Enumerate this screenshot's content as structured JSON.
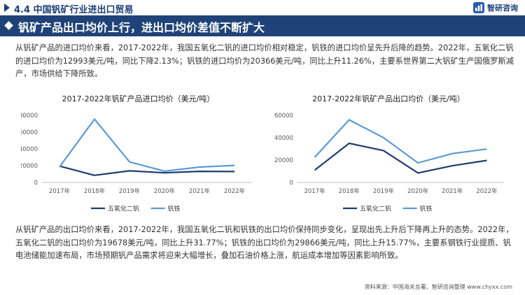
{
  "header": {
    "section_title": "4.4 中国钒矿行业进出口贸易",
    "logo_text": "智研咨询",
    "banner_title": "钒矿产品出口均价上行，进出口均价差值不断扩大"
  },
  "paragraphs": {
    "p1": "从钒矿产品的进口均价来看，2017-2022年，我国五氧化二钒的进口均价相对稳定，钒铁的进口均价呈先升后降的趋势。2022年，五氧化二钒的进口均价为12993美元/吨，同比下降2.13%；钒铁的进口均价为20366美元/吨，同比上升11.26%，主要系世界第二大钒矿生产国俄罗斯减产，市场供给下降所致。",
    "p2": "从钒矿产品的出口均价来看，2017-2022年，我国五氧化二钒和钒铁的出口均价保持同步变化，呈现出先上升后下降再上升的态势。2022年，五氧化二钒的出口均价为19678美元/吨，同比上升31.77%；钒铁的出口均价为29866美元/吨，同比上升15.77%，主要系钢铁行业提质、钒电池储能加速布局，市场预期钒产品需求将迎来大幅增长，叠加石油价格上涨，航运成本增加等因素影响所致。"
  },
  "footer": {
    "source": "资料来源：中国海关总署、智研咨询整理   www.chyxx.com"
  },
  "colors": {
    "navy": "#1f3d6e",
    "light_blue": "#5b9bd5"
  },
  "chart_data": [
    {
      "type": "line",
      "title": "2017-2022年钒矿产品进口均价（美元/吨）",
      "categories": [
        "2017年",
        "2018年",
        "2019年",
        "2020年",
        "2021年",
        "2022年"
      ],
      "series": [
        {
          "name": "五氧化二钒",
          "color": "#1f3d6e",
          "values": [
            19500,
            8500,
            13800,
            11500,
            13276,
            12993
          ]
        },
        {
          "name": "钒铁",
          "color": "#5b9bd5",
          "values": [
            18500,
            75500,
            24500,
            13500,
            18305,
            20366
          ]
        }
      ],
      "ylim": [
        0,
        80000
      ],
      "yticks": [
        0,
        20000,
        40000,
        60000,
        80000
      ],
      "legend": "bottom",
      "grid": false
    },
    {
      "type": "line",
      "title": "2017-2022年钒矿产品出口均价（美元/吨）",
      "categories": [
        "2017年",
        "2018年",
        "2019年",
        "2020年",
        "2021年",
        "2022年"
      ],
      "series": [
        {
          "name": "五氧化二钒",
          "color": "#1f3d6e",
          "values": [
            11000,
            35000,
            28500,
            8500,
            14934,
            19678
          ]
        },
        {
          "name": "钒铁",
          "color": "#5b9bd5",
          "values": [
            22500,
            56000,
            40000,
            17500,
            25798,
            29866
          ]
        }
      ],
      "ylim": [
        0,
        60000
      ],
      "yticks": [
        0,
        20000,
        40000,
        60000
      ],
      "legend": "bottom",
      "grid": false
    }
  ]
}
